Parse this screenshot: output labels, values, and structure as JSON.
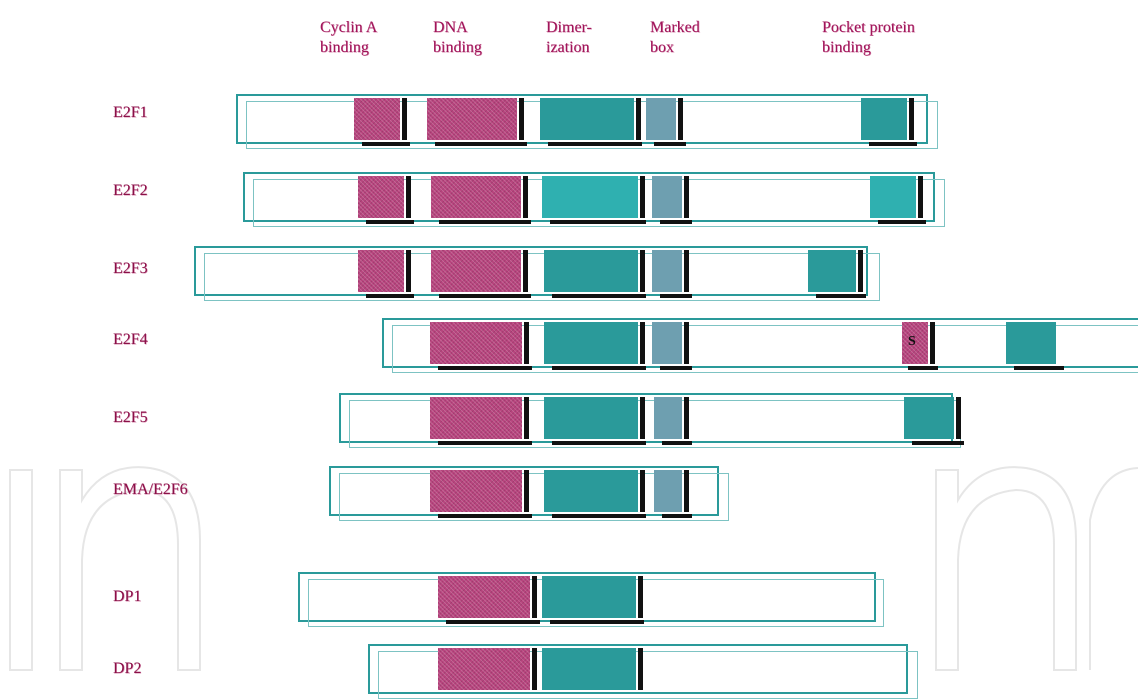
{
  "headers": {
    "cyclin_a": [
      "Cyclin A",
      "binding"
    ],
    "dna": [
      "DNA",
      "binding"
    ],
    "dimerization": [
      "Dimer-",
      "ization"
    ],
    "marked_box": [
      "Marked",
      "box"
    ],
    "pocket": [
      "Pocket protein",
      "binding"
    ]
  },
  "rows": [
    {
      "label": "E2F1"
    },
    {
      "label": "E2F2"
    },
    {
      "label": "E2F3"
    },
    {
      "label": "E2F4",
      "s_mark": "S"
    },
    {
      "label": "E2F5"
    },
    {
      "label": "EMA/E2F6"
    },
    {
      "label": "DP1"
    },
    {
      "label": "DP2"
    }
  ],
  "colors": {
    "cyclin_dna": "#b8447e",
    "dimerization": "#2a9a9a",
    "marked_box": "#6e9fb0",
    "frame": "#2a9a9a",
    "header_text": "#a0155a"
  }
}
